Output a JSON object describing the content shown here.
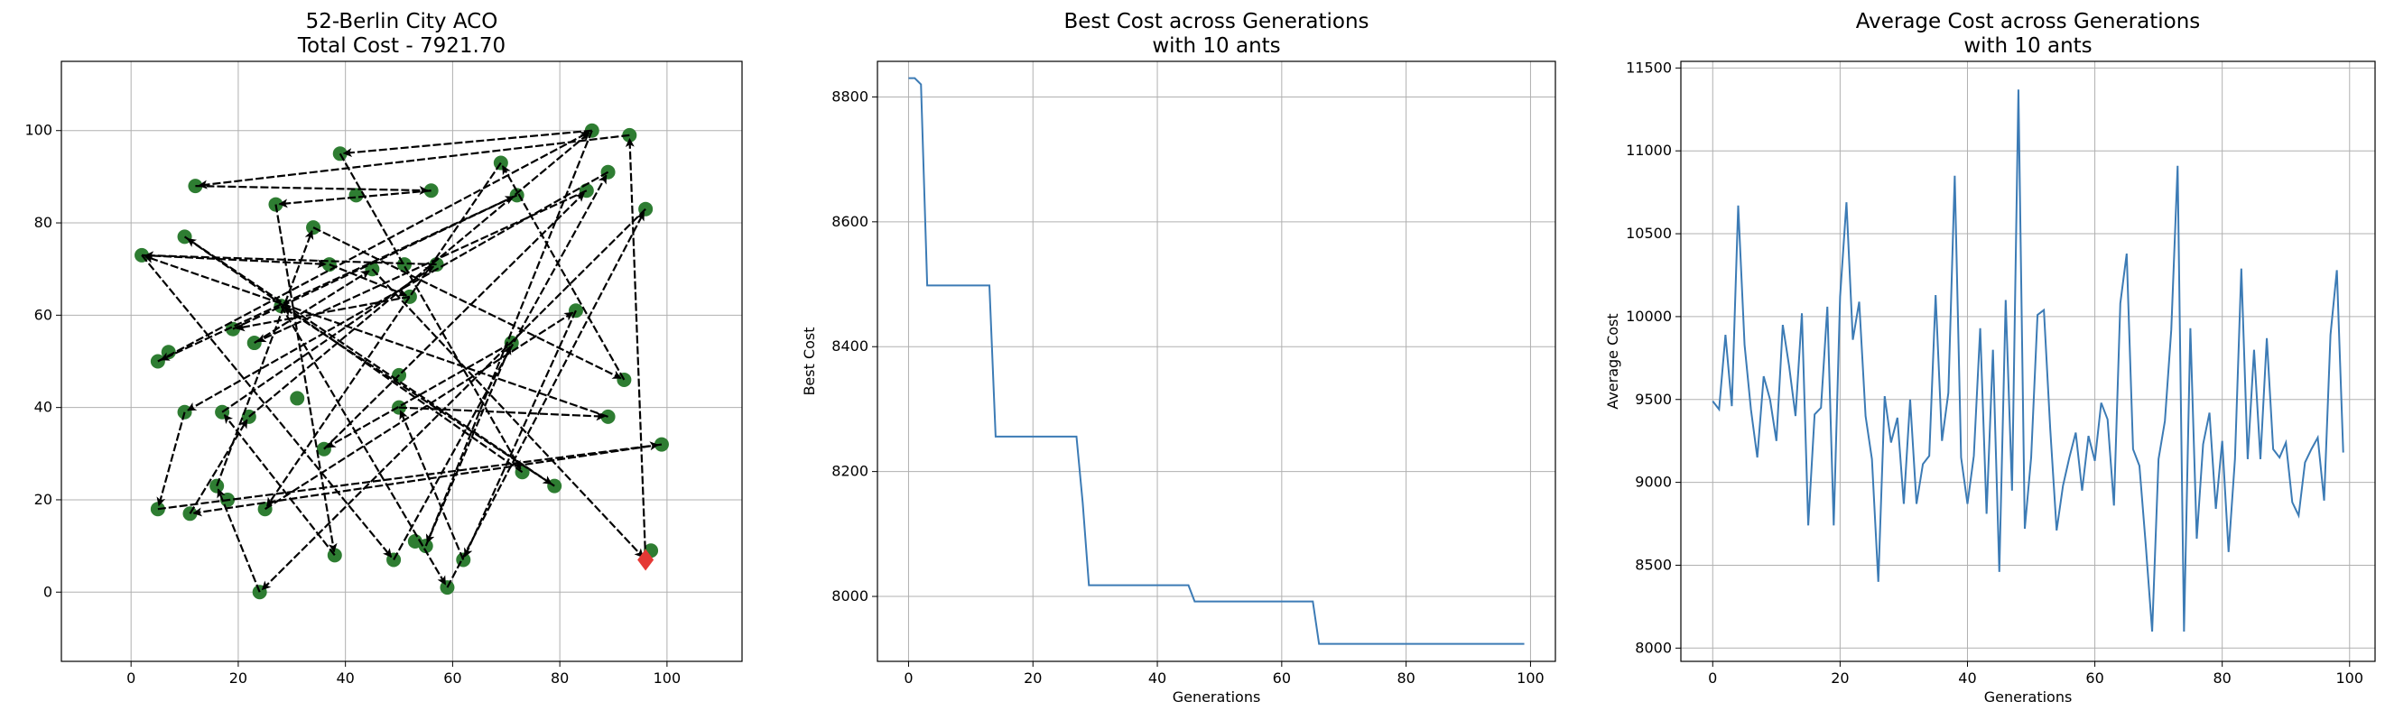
{
  "colors": {
    "city": "#2e7d32",
    "route": "#000000",
    "start_marker": "#e53935",
    "series_line": "#3c7bb5",
    "grid": "#b0b0b0"
  },
  "chart_data": [
    {
      "type": "scatter",
      "title": [
        "52-Berlin City ACO",
        "Total Cost - 7921.70"
      ],
      "xlabel": "",
      "ylabel": "",
      "xlim": [
        -13,
        114
      ],
      "ylim": [
        -15,
        115
      ],
      "xticks": [
        0,
        20,
        40,
        60,
        80,
        100
      ],
      "yticks": [
        0,
        20,
        40,
        60,
        80,
        100
      ],
      "grid": true,
      "cities": [
        [
          86,
          100
        ],
        [
          93,
          99
        ],
        [
          39,
          95
        ],
        [
          69,
          93
        ],
        [
          89,
          91
        ],
        [
          12,
          88
        ],
        [
          56,
          87
        ],
        [
          42,
          86
        ],
        [
          72,
          86
        ],
        [
          85,
          87
        ],
        [
          96,
          83
        ],
        [
          27,
          84
        ],
        [
          34,
          79
        ],
        [
          10,
          77
        ],
        [
          2,
          73
        ],
        [
          37,
          71
        ],
        [
          51,
          71
        ],
        [
          57,
          71
        ],
        [
          45,
          70
        ],
        [
          52,
          64
        ],
        [
          28,
          62
        ],
        [
          19,
          57
        ],
        [
          23,
          54
        ],
        [
          5,
          50
        ],
        [
          71,
          54
        ],
        [
          83,
          61
        ],
        [
          50,
          47
        ],
        [
          92,
          46
        ],
        [
          31,
          42
        ],
        [
          50,
          40
        ],
        [
          10,
          39
        ],
        [
          17,
          39
        ],
        [
          22,
          38
        ],
        [
          89,
          38
        ],
        [
          36,
          31
        ],
        [
          99,
          32
        ],
        [
          73,
          26
        ],
        [
          79,
          23
        ],
        [
          16,
          23
        ],
        [
          5,
          18
        ],
        [
          11,
          17
        ],
        [
          25,
          18
        ],
        [
          38,
          8
        ],
        [
          49,
          7
        ],
        [
          53,
          11
        ],
        [
          55,
          10
        ],
        [
          62,
          7
        ],
        [
          59,
          1
        ],
        [
          24,
          0
        ],
        [
          97,
          9
        ],
        [
          18,
          20
        ],
        [
          7,
          52
        ]
      ],
      "start": [
        96,
        7
      ],
      "route": [
        [
          96,
          7
        ],
        [
          93,
          99
        ],
        [
          12,
          88
        ],
        [
          56,
          87
        ],
        [
          27,
          84
        ],
        [
          38,
          8
        ],
        [
          17,
          39
        ],
        [
          57,
          71
        ],
        [
          2,
          73
        ],
        [
          49,
          7
        ],
        [
          89,
          91
        ],
        [
          10,
          39
        ],
        [
          5,
          18
        ],
        [
          99,
          32
        ],
        [
          11,
          17
        ],
        [
          22,
          38
        ],
        [
          86,
          100
        ],
        [
          39,
          95
        ],
        [
          73,
          26
        ],
        [
          10,
          77
        ],
        [
          79,
          23
        ],
        [
          28,
          62
        ],
        [
          59,
          1
        ],
        [
          96,
          83
        ],
        [
          24,
          0
        ],
        [
          16,
          23
        ],
        [
          34,
          79
        ],
        [
          92,
          46
        ],
        [
          69,
          93
        ],
        [
          25,
          18
        ],
        [
          83,
          61
        ],
        [
          62,
          7
        ],
        [
          50,
          40
        ],
        [
          89,
          38
        ],
        [
          2,
          73
        ],
        [
          37,
          71
        ],
        [
          52,
          64
        ],
        [
          19,
          57
        ],
        [
          72,
          86
        ],
        [
          5,
          50
        ],
        [
          86,
          100
        ],
        [
          55,
          10
        ],
        [
          71,
          54
        ],
        [
          36,
          31
        ],
        [
          85,
          87
        ],
        [
          23,
          54
        ],
        [
          45,
          70
        ],
        [
          96,
          7
        ]
      ]
    },
    {
      "type": "line",
      "title": [
        "Best Cost across Generations",
        "with 10 ants"
      ],
      "xlabel": "Generations",
      "ylabel": "Best Cost",
      "xlim": [
        -5,
        104
      ],
      "ylim": [
        7896,
        8857
      ],
      "xticks": [
        0,
        20,
        40,
        60,
        80,
        100
      ],
      "yticks": [
        8000,
        8200,
        8400,
        8600,
        8800
      ],
      "grid": true,
      "series": [
        {
          "x": [
            0,
            1,
            2,
            3,
            13,
            14,
            27,
            28,
            29,
            45,
            46,
            65,
            66,
            99
          ],
          "y": [
            8830,
            8830,
            8820,
            8498,
            8498,
            8256,
            8256,
            8150,
            8018,
            8018,
            7992,
            7992,
            7924,
            7924
          ]
        }
      ]
    },
    {
      "type": "line",
      "title": [
        "Average Cost across Generations",
        "with 10 ants"
      ],
      "xlabel": "Generations",
      "ylabel": "Average Cost",
      "xlim": [
        -5,
        104
      ],
      "ylim": [
        7920,
        11540
      ],
      "xticks": [
        0,
        20,
        40,
        60,
        80,
        100
      ],
      "yticks": [
        8000,
        8500,
        9000,
        9500,
        10000,
        10500,
        11000,
        11500
      ],
      "grid": true,
      "series": [
        {
          "x": [
            0,
            1,
            2,
            3,
            4,
            5,
            6,
            7,
            8,
            9,
            10,
            11,
            12,
            13,
            14,
            15,
            16,
            17,
            18,
            19,
            20,
            21,
            22,
            23,
            24,
            25,
            26,
            27,
            28,
            29,
            30,
            31,
            32,
            33,
            34,
            35,
            36,
            37,
            38,
            39,
            40,
            41,
            42,
            43,
            44,
            45,
            46,
            47,
            48,
            49,
            50,
            51,
            52,
            53,
            54,
            55,
            56,
            57,
            58,
            59,
            60,
            61,
            62,
            63,
            64,
            65,
            66,
            67,
            68,
            69,
            70,
            71,
            72,
            73,
            74,
            75,
            76,
            77,
            78,
            79,
            80,
            81,
            82,
            83,
            84,
            85,
            86,
            87,
            88,
            89,
            90,
            91,
            92,
            93,
            94,
            95,
            96,
            97,
            98,
            99
          ],
          "y": [
            9490,
            9440,
            9890,
            9460,
            10670,
            9830,
            9440,
            9150,
            9640,
            9500,
            9250,
            9950,
            9700,
            9400,
            10020,
            8740,
            9410,
            9450,
            10060,
            8740,
            10120,
            10690,
            9860,
            10090,
            9400,
            9140,
            8400,
            9520,
            9240,
            9390,
            8870,
            9500,
            8870,
            9110,
            9160,
            10130,
            9250,
            9540,
            10850,
            9150,
            8870,
            9160,
            9930,
            8810,
            9800,
            8460,
            10100,
            8950,
            11370,
            8720,
            9150,
            10010,
            10040,
            9320,
            8710,
            8980,
            9150,
            9300,
            8950,
            9280,
            9130,
            9480,
            9380,
            8860,
            10080,
            10380,
            9200,
            9100,
            8620,
            8100,
            9140,
            9370,
            9920,
            10910,
            8100,
            9930,
            8660,
            9230,
            9420,
            8840,
            9250,
            8580,
            9140,
            10290,
            9140,
            9800,
            9140,
            9870,
            9200,
            9150,
            9240,
            8880,
            8800,
            9120,
            9200,
            9270,
            8890,
            9890,
            10280,
            9180
          ]
        }
      ]
    }
  ]
}
